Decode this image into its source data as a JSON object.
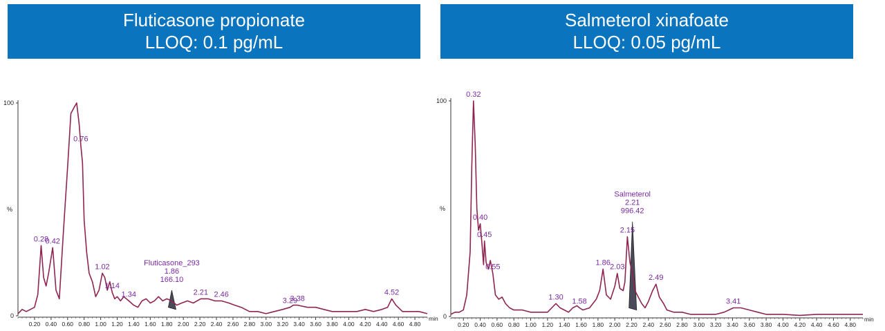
{
  "panels": {
    "left": {
      "title": "Fluticasone propionate",
      "subtitle": "LLOQ: 0.1 pg/mL"
    },
    "right": {
      "title": "Salmeterol xinafoate",
      "subtitle": "LLOQ: 0.05 pg/mL"
    }
  },
  "colors": {
    "banner": "#0b74be",
    "trace": "#8e2450",
    "label": "#7a2aa0",
    "peak_fill": "#4a4a5a"
  },
  "chart_data": [
    {
      "type": "line",
      "title": "",
      "xlabel": "min",
      "ylabel": "%",
      "xlim": [
        0.0,
        4.95
      ],
      "ylim": [
        0,
        100
      ],
      "xticks": [
        "0.20",
        "0.40",
        "0.60",
        "0.80",
        "1.00",
        "1.20",
        "1.40",
        "1.60",
        "1.80",
        "2.00",
        "2.20",
        "2.40",
        "2.60",
        "2.80",
        "3.00",
        "3.20",
        "3.40",
        "3.60",
        "3.80",
        "4.00",
        "4.20",
        "4.40",
        "4.60",
        "4.80"
      ],
      "yticks": [
        "0",
        "%",
        "100"
      ],
      "x": [
        0.0,
        0.05,
        0.1,
        0.15,
        0.2,
        0.24,
        0.28,
        0.31,
        0.34,
        0.37,
        0.42,
        0.46,
        0.5,
        0.55,
        0.6,
        0.64,
        0.68,
        0.71,
        0.74,
        0.76,
        0.78,
        0.8,
        0.83,
        0.86,
        0.9,
        0.94,
        0.98,
        1.02,
        1.05,
        1.08,
        1.11,
        1.14,
        1.17,
        1.2,
        1.24,
        1.28,
        1.34,
        1.4,
        1.45,
        1.5,
        1.55,
        1.6,
        1.65,
        1.7,
        1.75,
        1.8,
        1.86,
        1.92,
        1.98,
        2.05,
        2.12,
        2.21,
        2.3,
        2.38,
        2.46,
        2.55,
        2.62,
        2.7,
        2.8,
        2.9,
        3.0,
        3.1,
        3.2,
        3.29,
        3.33,
        3.38,
        3.5,
        3.6,
        3.7,
        3.8,
        3.9,
        4.0,
        4.1,
        4.2,
        4.3,
        4.4,
        4.47,
        4.52,
        4.57,
        4.65,
        4.75,
        4.85,
        4.95
      ],
      "y": [
        1,
        3,
        2,
        3,
        4,
        10,
        33,
        18,
        14,
        20,
        32,
        12,
        8,
        40,
        70,
        95,
        98,
        100,
        90,
        80,
        72,
        45,
        30,
        20,
        16,
        9,
        12,
        20,
        18,
        12,
        16,
        11,
        8,
        9,
        7,
        9,
        7,
        5,
        4,
        7,
        8,
        6,
        7,
        9,
        7,
        8,
        7,
        5,
        6,
        7,
        6,
        8,
        8,
        7,
        7,
        6,
        5,
        4,
        2,
        2,
        1,
        2,
        3,
        4,
        5,
        5,
        4,
        4,
        3,
        2,
        2,
        2,
        2,
        3,
        2,
        3,
        4,
        8,
        5,
        2,
        2,
        2,
        1
      ],
      "peak_labels": [
        {
          "x": 0.28,
          "text": "0.28"
        },
        {
          "x": 0.42,
          "text": "0.42"
        },
        {
          "x": 0.76,
          "text": "0.76"
        },
        {
          "x": 1.02,
          "text": "1.02"
        },
        {
          "x": 1.14,
          "text": "1.14"
        },
        {
          "x": 1.34,
          "text": "1.34"
        },
        {
          "x": 2.21,
          "text": "2.21"
        },
        {
          "x": 2.46,
          "text": "2.46"
        },
        {
          "x": 3.29,
          "text": "3.29"
        },
        {
          "x": 3.38,
          "text": "3.38"
        },
        {
          "x": 4.52,
          "text": "4.52"
        }
      ],
      "annotation": {
        "lines": [
          "Fluticasone_293",
          "1.86",
          "166.10"
        ],
        "rt": 1.86,
        "peak_height": 12
      }
    },
    {
      "type": "line",
      "title": "",
      "xlabel": "min",
      "ylabel": "%",
      "xlim": [
        0.05,
        4.95
      ],
      "ylim": [
        0,
        100
      ],
      "xticks": [
        "0.20",
        "0.40",
        "0.60",
        "0.80",
        "1.00",
        "1.20",
        "1.40",
        "1.60",
        "1.80",
        "2.00",
        "2.20",
        "2.40",
        "2.60",
        "2.80",
        "3.00",
        "3.20",
        "3.40",
        "3.60",
        "3.80",
        "4.00",
        "4.20",
        "4.40",
        "4.60",
        "4.80"
      ],
      "yticks": [
        "0",
        "%",
        "100"
      ],
      "x": [
        0.05,
        0.1,
        0.15,
        0.2,
        0.24,
        0.28,
        0.3,
        0.32,
        0.34,
        0.36,
        0.38,
        0.4,
        0.42,
        0.44,
        0.45,
        0.47,
        0.5,
        0.52,
        0.55,
        0.58,
        0.62,
        0.66,
        0.7,
        0.75,
        0.8,
        0.9,
        1.0,
        1.1,
        1.2,
        1.25,
        1.3,
        1.35,
        1.4,
        1.45,
        1.5,
        1.55,
        1.58,
        1.62,
        1.7,
        1.78,
        1.82,
        1.86,
        1.9,
        1.95,
        2.0,
        2.03,
        2.06,
        2.1,
        2.12,
        2.15,
        2.18,
        2.21,
        2.24,
        2.28,
        2.32,
        2.36,
        2.4,
        2.45,
        2.49,
        2.53,
        2.58,
        2.62,
        2.7,
        2.8,
        2.9,
        3.0,
        3.1,
        3.2,
        3.3,
        3.41,
        3.5,
        3.6,
        3.7,
        3.8,
        3.9,
        4.0,
        4.2,
        4.4,
        4.6,
        4.8,
        4.95
      ],
      "y": [
        1,
        2,
        2,
        3,
        10,
        30,
        70,
        100,
        80,
        50,
        40,
        43,
        34,
        24,
        35,
        25,
        22,
        26,
        20,
        10,
        8,
        9,
        6,
        4,
        3,
        3,
        2,
        2,
        2,
        4,
        6,
        4,
        3,
        2,
        4,
        5,
        4,
        3,
        4,
        8,
        12,
        22,
        10,
        8,
        14,
        20,
        13,
        12,
        16,
        37,
        25,
        20,
        12,
        9,
        6,
        4,
        7,
        12,
        15,
        9,
        6,
        3,
        2,
        2,
        1,
        1,
        1,
        1,
        2,
        4,
        4,
        3,
        2,
        1,
        1,
        1,
        0.5,
        1,
        1,
        1,
        1
      ],
      "peak_labels": [
        {
          "x": 0.32,
          "text": "0.32"
        },
        {
          "x": 0.4,
          "text": "0.40"
        },
        {
          "x": 0.45,
          "text": "0.45"
        },
        {
          "x": 0.55,
          "text": "0.55"
        },
        {
          "x": 1.3,
          "text": "1.30"
        },
        {
          "x": 1.58,
          "text": "1.58"
        },
        {
          "x": 1.86,
          "text": "1.86"
        },
        {
          "x": 2.03,
          "text": "2.03"
        },
        {
          "x": 2.15,
          "text": "2.15"
        },
        {
          "x": 2.49,
          "text": "2.49"
        },
        {
          "x": 3.41,
          "text": "3.41"
        }
      ],
      "annotation": {
        "lines": [
          "Salmeterol",
          "2.21",
          "996.42"
        ],
        "rt": 2.21,
        "peak_height": 44
      }
    }
  ]
}
